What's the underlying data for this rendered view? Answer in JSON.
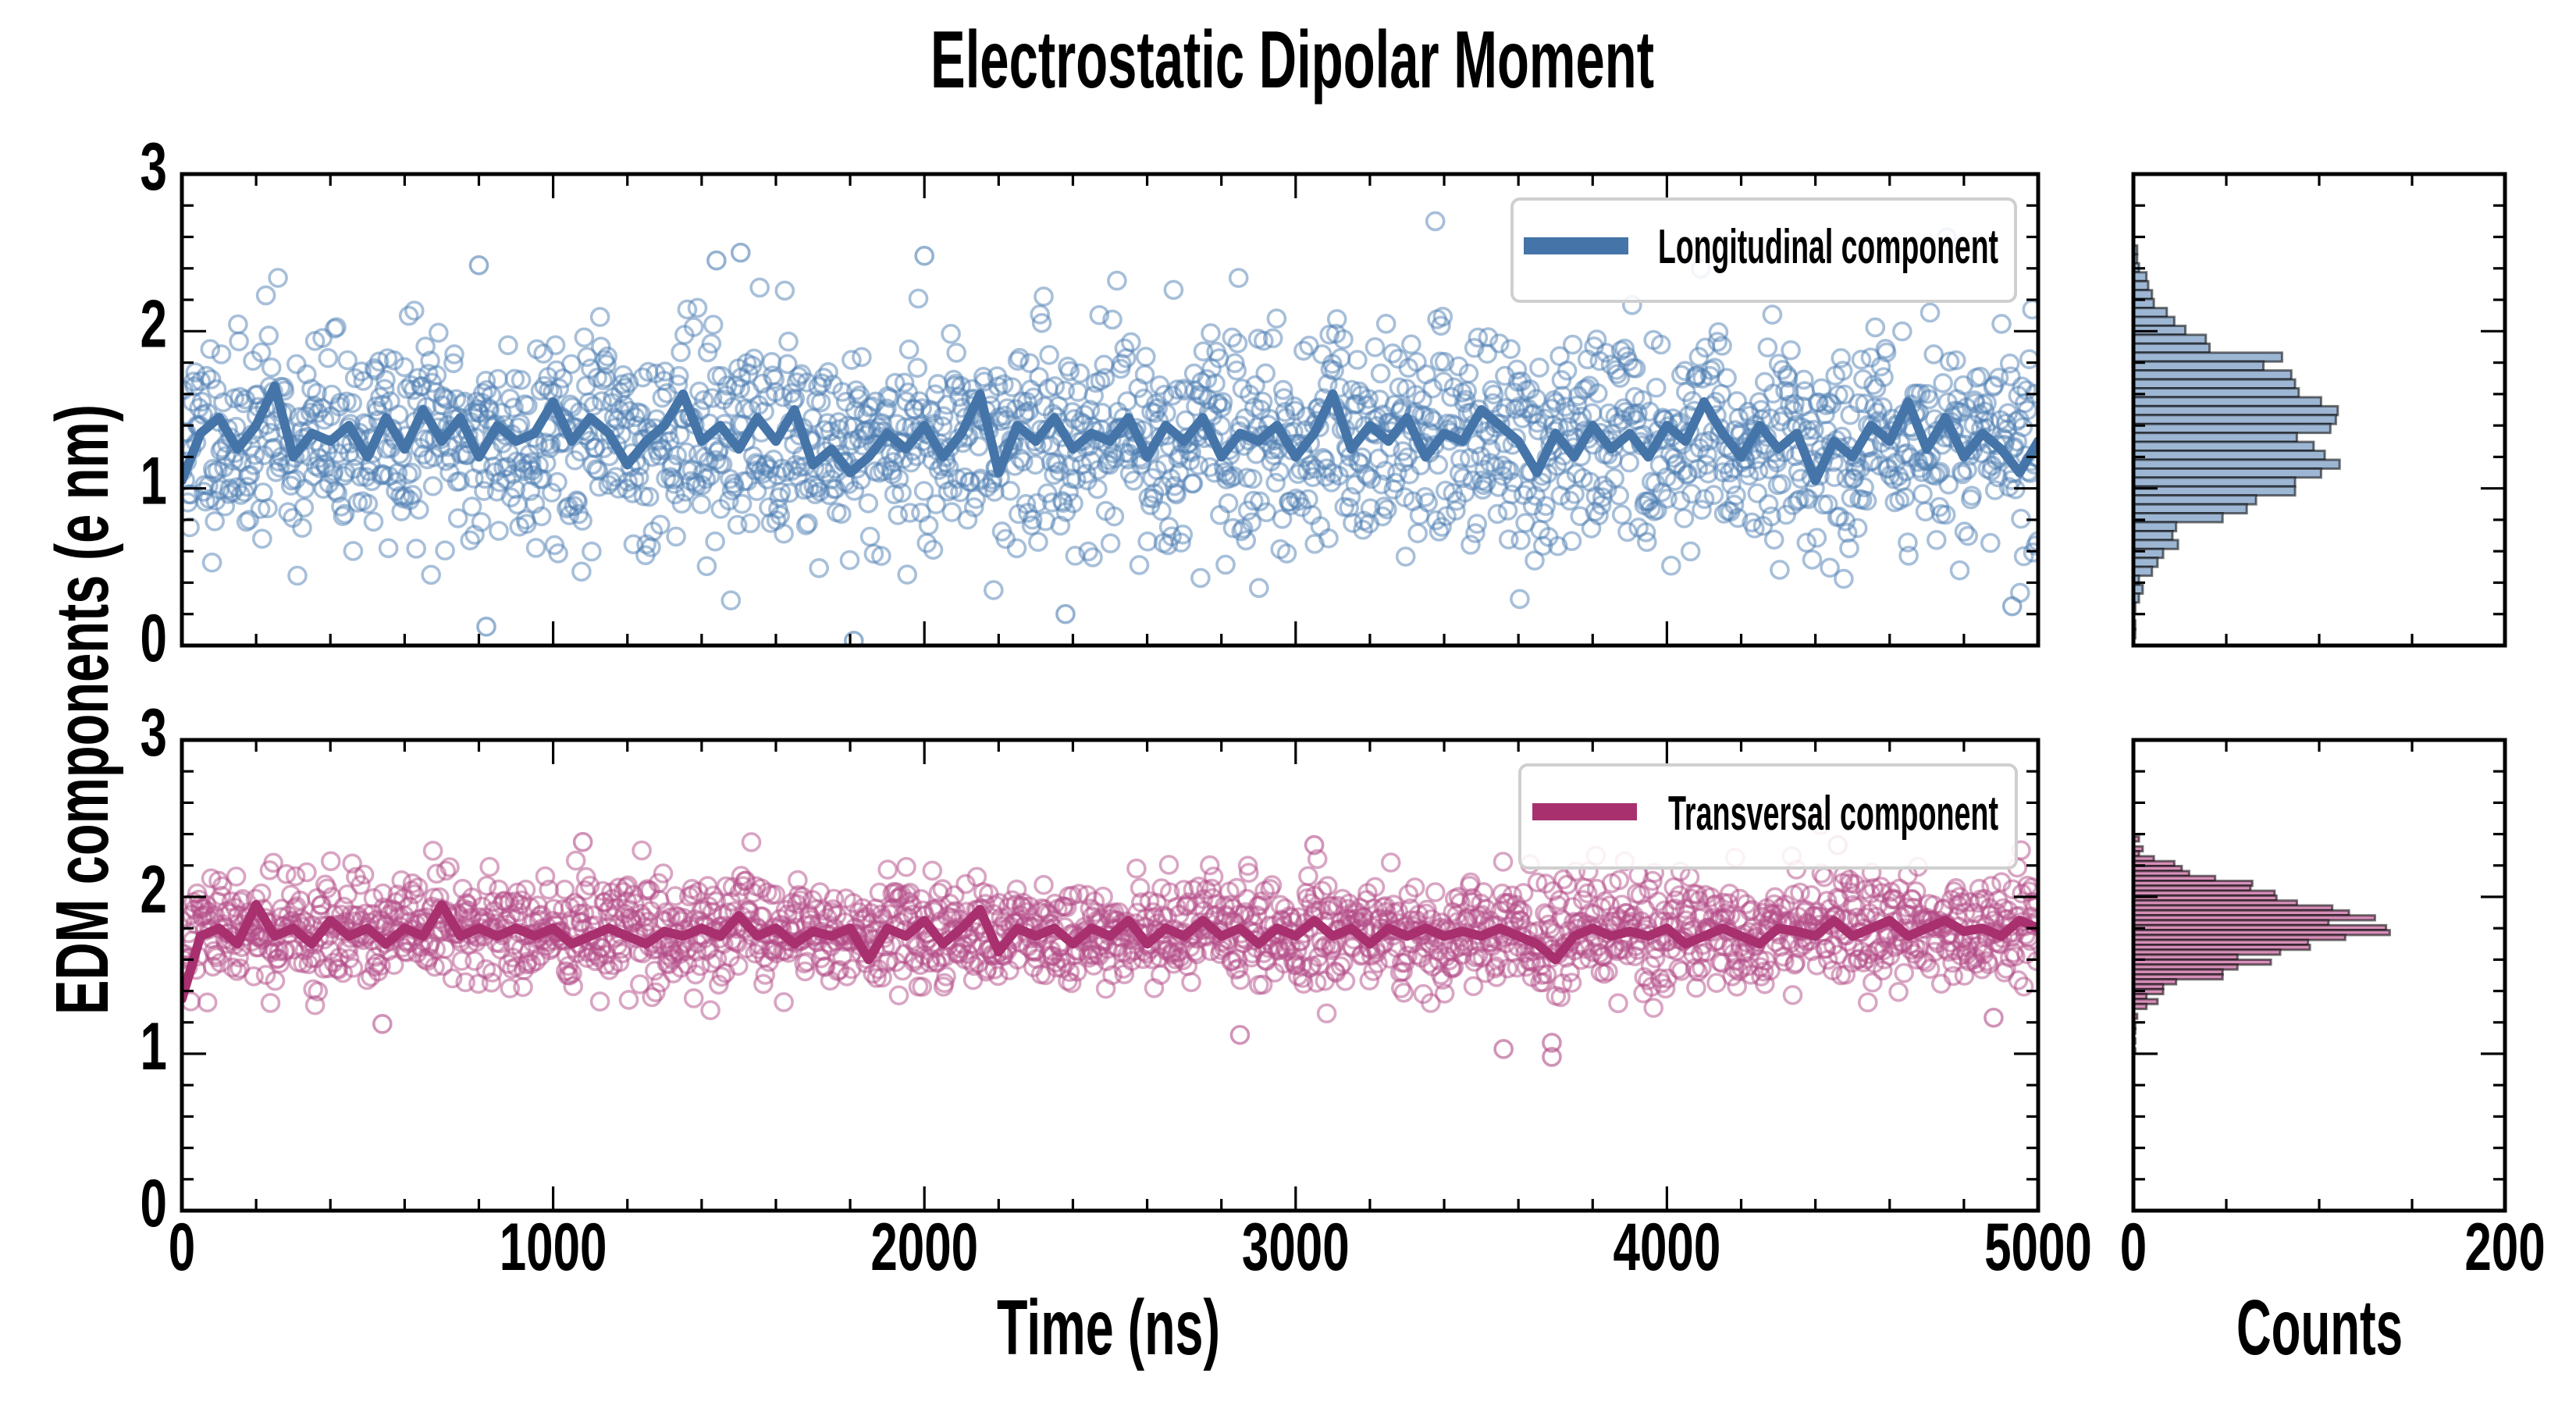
{
  "chart_data": {
    "type": "scatter",
    "title": "Electrostatic Dipolar Moment",
    "xlabel": "Time (ns)",
    "ylabel": "EDM components (e nm)",
    "hist_xlabel": "Counts",
    "xlim": [
      0,
      5000
    ],
    "ylim": [
      0,
      3
    ],
    "hist_xlim": [
      0,
      200
    ],
    "grid": false,
    "legend_placement": "top-right",
    "x_ticks": [
      {
        "value": 0,
        "label": "0"
      },
      {
        "value": 1000,
        "label": "1000"
      },
      {
        "value": 2000,
        "label": "2000"
      },
      {
        "value": 3000,
        "label": "3000"
      },
      {
        "value": 4000,
        "label": "4000"
      },
      {
        "value": 5000,
        "label": "5000"
      }
    ],
    "x_minor_step": 200,
    "y_ticks": [
      {
        "value": 0,
        "label": "0"
      },
      {
        "value": 1,
        "label": "1"
      },
      {
        "value": 2,
        "label": "2"
      },
      {
        "value": 3,
        "label": "3"
      }
    ],
    "y_minor_step": 0.2,
    "hist_ticks": [
      {
        "value": 0,
        "label": "0"
      },
      {
        "value": 200,
        "label": "200"
      }
    ],
    "hist_minor_step": 50,
    "panels": [
      {
        "name": "Longitudinal component",
        "line_color": "#4575a8",
        "marker_color": "#4f7fb3",
        "hist_fill": "#9db6d3",
        "scatter": {
          "n_points": 2000,
          "mean": 1.3,
          "std": 0.33,
          "seed": 11,
          "outliers": [
            [
              1810,
              0.03
            ],
            [
              820,
              0.12
            ],
            [
              2380,
              0.2
            ],
            [
              4930,
              0.25
            ],
            [
              1505,
              2.5
            ],
            [
              2000,
              2.48
            ],
            [
              800,
              2.42
            ],
            [
              1440,
              2.45
            ]
          ]
        },
        "line_step": 50,
        "line": [
          1.05,
          1.35,
          1.45,
          1.25,
          1.4,
          1.65,
          1.2,
          1.35,
          1.3,
          1.4,
          1.2,
          1.45,
          1.25,
          1.5,
          1.3,
          1.45,
          1.2,
          1.4,
          1.3,
          1.35,
          1.55,
          1.3,
          1.45,
          1.35,
          1.15,
          1.3,
          1.4,
          1.6,
          1.3,
          1.4,
          1.25,
          1.45,
          1.3,
          1.5,
          1.15,
          1.25,
          1.1,
          1.2,
          1.35,
          1.25,
          1.4,
          1.2,
          1.35,
          1.6,
          1.1,
          1.4,
          1.3,
          1.45,
          1.25,
          1.35,
          1.3,
          1.45,
          1.2,
          1.4,
          1.3,
          1.45,
          1.2,
          1.35,
          1.3,
          1.4,
          1.2,
          1.35,
          1.6,
          1.25,
          1.4,
          1.3,
          1.45,
          1.2,
          1.35,
          1.3,
          1.5,
          1.4,
          1.3,
          1.1,
          1.35,
          1.2,
          1.4,
          1.25,
          1.35,
          1.2,
          1.4,
          1.3,
          1.55,
          1.35,
          1.2,
          1.4,
          1.25,
          1.35,
          1.05,
          1.3,
          1.2,
          1.4,
          1.3,
          1.55,
          1.25,
          1.45,
          1.2,
          1.35,
          1.25,
          1.1,
          1.3
        ],
        "hist": {
          "top_bin_center": 2.517,
          "bin_width": 0.0568,
          "counts": [
            2,
            2,
            3,
            7,
            8,
            10,
            11,
            18,
            22,
            28,
            39,
            41,
            80,
            70,
            85,
            87,
            89,
            101,
            110,
            109,
            106,
            88,
            97,
            103,
            111,
            101,
            87,
            87,
            66,
            61,
            48,
            23,
            21,
            24,
            16,
            13,
            10,
            3,
            5,
            3,
            1,
            0,
            1,
            1
          ]
        }
      },
      {
        "name": "Transversal component",
        "line_color": "#a8306f",
        "marker_color": "#b34b88",
        "hist_fill": "#d68fb8",
        "scatter": {
          "n_points": 2000,
          "mean": 1.78,
          "std": 0.17,
          "seed": 29,
          "outliers": [
            [
              3560,
              1.03
            ],
            [
              3690,
              1.07
            ],
            [
              3690,
              0.98
            ],
            [
              2850,
              1.12
            ],
            [
              540,
              1.19
            ],
            [
              4880,
              1.23
            ],
            [
              1080,
              2.35
            ],
            [
              3050,
              2.33
            ],
            [
              4460,
              2.33
            ]
          ]
        },
        "line_step": 50,
        "line": [
          1.35,
          1.75,
          1.8,
          1.7,
          1.95,
          1.75,
          1.8,
          1.7,
          1.85,
          1.75,
          1.8,
          1.7,
          1.8,
          1.75,
          1.95,
          1.75,
          1.8,
          1.75,
          1.8,
          1.75,
          1.8,
          1.7,
          1.75,
          1.8,
          1.75,
          1.7,
          1.78,
          1.75,
          1.8,
          1.75,
          1.88,
          1.75,
          1.8,
          1.7,
          1.78,
          1.75,
          1.8,
          1.6,
          1.8,
          1.75,
          1.85,
          1.7,
          1.8,
          1.92,
          1.65,
          1.8,
          1.75,
          1.8,
          1.7,
          1.8,
          1.75,
          1.85,
          1.7,
          1.8,
          1.75,
          1.85,
          1.75,
          1.8,
          1.7,
          1.8,
          1.75,
          1.85,
          1.75,
          1.8,
          1.7,
          1.8,
          1.75,
          1.8,
          1.75,
          1.78,
          1.75,
          1.8,
          1.75,
          1.7,
          1.6,
          1.75,
          1.8,
          1.75,
          1.78,
          1.75,
          1.8,
          1.7,
          1.75,
          1.8,
          1.75,
          1.7,
          1.8,
          1.78,
          1.75,
          1.85,
          1.75,
          1.8,
          1.85,
          1.75,
          1.8,
          1.85,
          1.78,
          1.8,
          1.75,
          1.85,
          1.8
        ],
        "hist": {
          "top_bin_center": 2.369,
          "bin_width": 0.0314,
          "counts": [
            3,
            0,
            5,
            3,
            11,
            22,
            26,
            30,
            44,
            64,
            63,
            76,
            77,
            88,
            107,
            116,
            130,
            105,
            136,
            138,
            114,
            94,
            95,
            79,
            56,
            74,
            56,
            48,
            48,
            23,
            16,
            16,
            7,
            13,
            7,
            0,
            2,
            0,
            1,
            1,
            0,
            1,
            0,
            1
          ]
        }
      }
    ]
  }
}
